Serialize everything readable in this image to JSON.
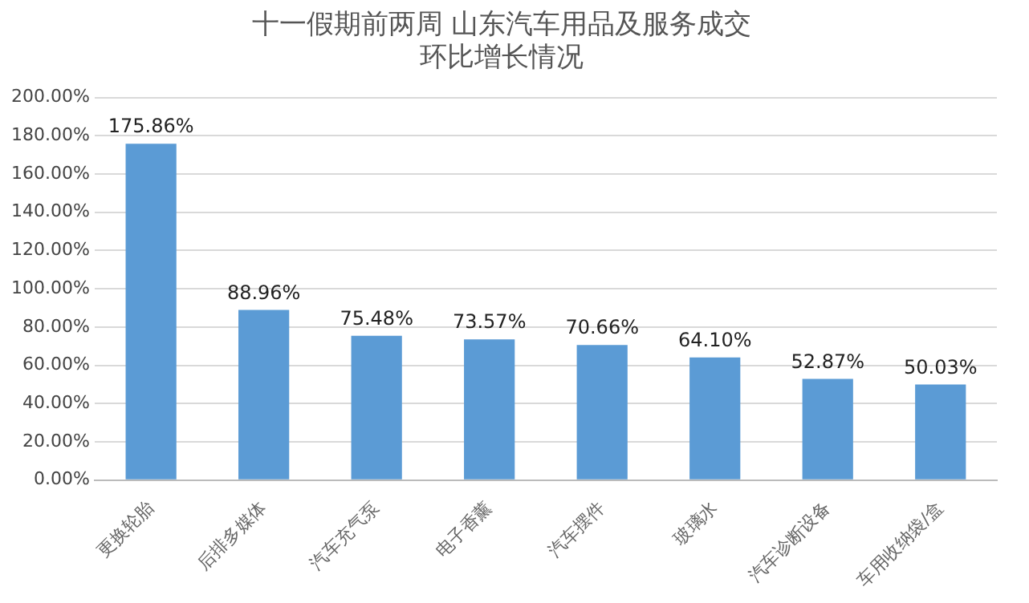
{
  "chart_data": {
    "type": "bar",
    "title": "十一假期前两周 山东汽车用品及服务成交",
    "subtitle": "环比增长情况",
    "categories": [
      "更换轮胎",
      "后排多媒体",
      "汽车充气泵",
      "电子香薰",
      "汽车摆件",
      "玻璃水",
      "汽车诊断设备",
      "车用收纳袋/盒"
    ],
    "values": [
      175.86,
      88.96,
      75.48,
      73.57,
      70.66,
      64.1,
      52.87,
      50.03
    ],
    "value_labels": [
      "175.86%",
      "88.96%",
      "75.48%",
      "73.57%",
      "70.66%",
      "64.10%",
      "52.87%",
      "50.03%"
    ],
    "color": "#5b9bd5",
    "ylim": [
      0,
      200
    ],
    "yticks": [
      {
        "value": 0,
        "label": "0.00%"
      },
      {
        "value": 20,
        "label": "20.00%"
      },
      {
        "value": 40,
        "label": "40.00%"
      },
      {
        "value": 60,
        "label": "60.00%"
      },
      {
        "value": 80,
        "label": "80.00%"
      },
      {
        "value": 100,
        "label": "100.00%"
      },
      {
        "value": 120,
        "label": "120.00%"
      },
      {
        "value": 140,
        "label": "140.00%"
      },
      {
        "value": 160,
        "label": "160.00%"
      },
      {
        "value": 180,
        "label": "180.00%"
      },
      {
        "value": 200,
        "label": "200.00%"
      }
    ],
    "grid": "y",
    "legend": false
  }
}
